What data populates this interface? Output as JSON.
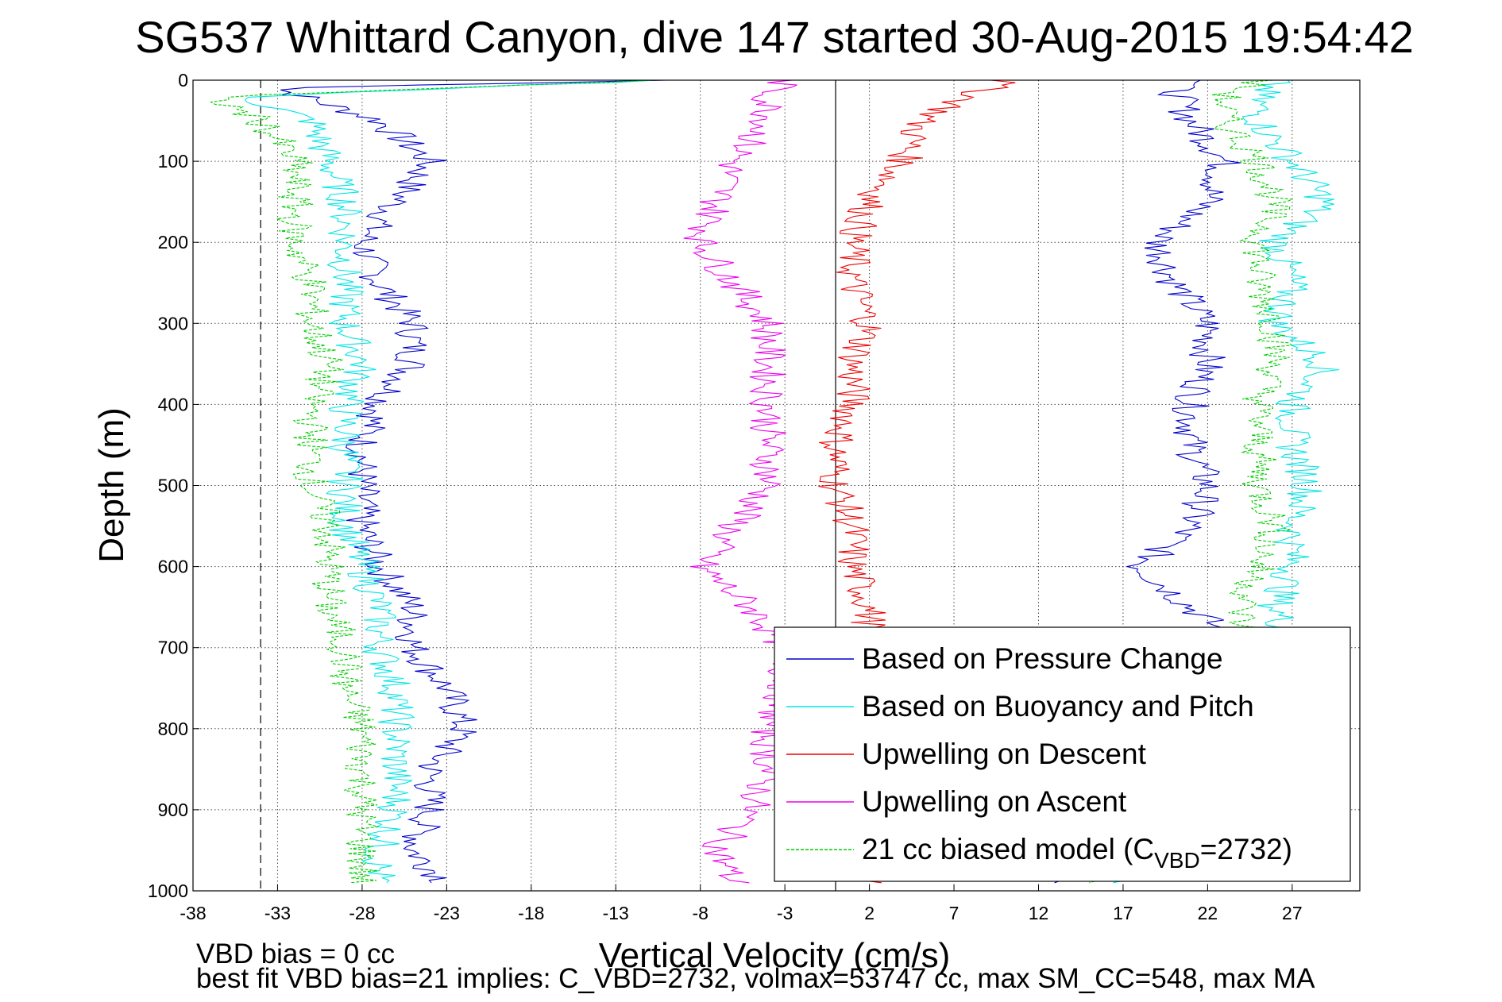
{
  "chart_data": {
    "type": "line",
    "title": "SG537 Whittard Canyon, dive 147 started 30-Aug-2015 19:54:42",
    "xlabel": "Vertical Velocity (cm/s)",
    "ylabel": "Depth (m)",
    "xlim": [
      -38,
      31
    ],
    "ylim": [
      1000,
      0
    ],
    "y_reversed": true,
    "x_ticks": [
      -38,
      -33,
      -28,
      -23,
      -18,
      -13,
      -8,
      -3,
      2,
      7,
      12,
      17,
      22,
      27
    ],
    "y_ticks": [
      0,
      100,
      200,
      300,
      400,
      500,
      600,
      700,
      800,
      900,
      1000
    ],
    "grid": true,
    "legend_position": "bottom-right",
    "reference_lines": [
      {
        "x": -34,
        "style": "dashed"
      },
      {
        "x": 0,
        "style": "solid"
      }
    ],
    "series": [
      {
        "name": "Based on Pressure Change",
        "color": "#0000cc",
        "depth": [
          0,
          10,
          50,
          100,
          150,
          200,
          250,
          300,
          350,
          400,
          450,
          500,
          550,
          600,
          650,
          700,
          750,
          800,
          850,
          900,
          950,
          990
        ],
        "values_descent": [
          -10,
          -33,
          -27,
          -24,
          -26,
          -28,
          -27,
          -25,
          -25,
          -27,
          -28,
          -28,
          -28,
          -27,
          -25,
          -25,
          -23,
          -22,
          -24,
          -24,
          -25,
          -23
        ],
        "values_ascent": [
          22,
          20,
          21,
          23,
          22,
          19,
          20,
          22,
          22,
          21,
          21,
          22,
          21,
          18,
          21,
          24,
          26,
          26,
          26,
          25,
          25,
          12
        ]
      },
      {
        "name": "Based on Buoyancy and Pitch",
        "color": "#00e5e5",
        "depth": [
          0,
          20,
          50,
          100,
          150,
          200,
          250,
          300,
          350,
          400,
          450,
          500,
          550,
          600,
          650,
          700,
          750,
          800,
          850,
          900,
          950,
          990
        ],
        "values_descent": [
          -10,
          -35,
          -31,
          -30,
          -29,
          -29,
          -29,
          -29,
          -28,
          -29,
          -29,
          -29,
          -29,
          -28,
          -27,
          -27,
          -26,
          -26,
          -26,
          -26,
          -27,
          -27
        ],
        "values_ascent": [
          26,
          25,
          25,
          27,
          29,
          26,
          27,
          26,
          29,
          27,
          27,
          28,
          27,
          27,
          26,
          27,
          26,
          26,
          25,
          24,
          24,
          17
        ]
      },
      {
        "name": "Upwelling on Descent",
        "color": "#ee0000",
        "depth": [
          0,
          20,
          50,
          100,
          150,
          200,
          250,
          300,
          350,
          400,
          450,
          500,
          550,
          600,
          650,
          700,
          750,
          800,
          850,
          900,
          950,
          990
        ],
        "values": [
          10,
          8,
          5,
          4,
          2,
          1,
          1,
          2,
          1,
          1,
          0,
          0,
          1,
          1,
          2,
          2,
          2,
          2,
          2,
          2,
          2,
          2
        ]
      },
      {
        "name": "Upwelling on Ascent",
        "color": "#ee00ee",
        "depth": [
          0,
          20,
          50,
          100,
          150,
          200,
          250,
          300,
          350,
          400,
          450,
          500,
          550,
          600,
          650,
          700,
          750,
          800,
          850,
          900,
          950,
          990
        ],
        "values": [
          -3,
          -4,
          -4,
          -6,
          -7,
          -8,
          -6,
          -4,
          -4,
          -4,
          -4,
          -4,
          -6,
          -8,
          -5,
          -3,
          -3,
          -4,
          -4,
          -5,
          -7,
          -6
        ]
      },
      {
        "name": "21 cc biased model",
        "legend_label": {
          "prefix": "21 cc biased model (C",
          "subscript": "VBD",
          "suffix": "=2732)"
        },
        "color": "#00cc00",
        "dashed": true,
        "depth": [
          0,
          20,
          50,
          100,
          150,
          200,
          250,
          300,
          350,
          400,
          450,
          500,
          550,
          600,
          650,
          700,
          750,
          800,
          850,
          900,
          950,
          990
        ],
        "values_descent": [
          -10,
          -37,
          -34,
          -32,
          -32,
          -32,
          -31,
          -31,
          -30,
          -31,
          -31,
          -31,
          -30,
          -30,
          -30,
          -29,
          -29,
          -28,
          -28,
          -28,
          -28,
          -28
        ],
        "values_ascent": [
          25,
          23,
          23,
          25,
          26,
          25,
          25,
          26,
          26,
          25,
          25,
          25,
          26,
          25,
          24,
          24,
          23,
          23,
          23,
          22,
          21,
          15
        ]
      }
    ]
  },
  "footer": {
    "line1": "VBD bias = 0 cc",
    "line2": "best fit VBD bias=21 implies: C_VBD=2732, volmax=53747 cc, max SM_CC=548, max MA"
  }
}
